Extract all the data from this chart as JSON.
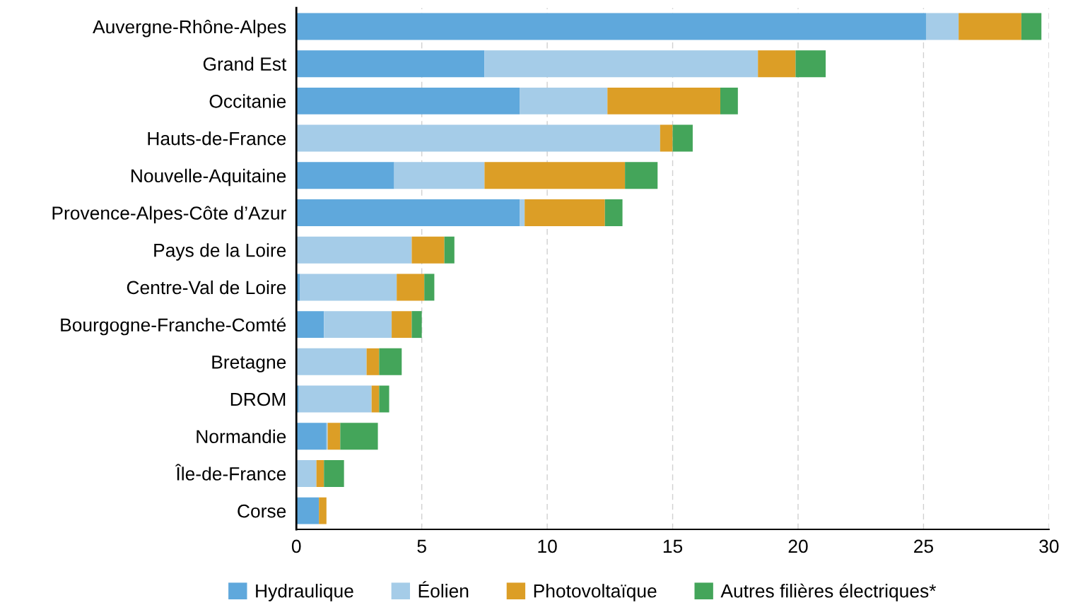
{
  "chart_data": {
    "type": "bar",
    "orientation": "horizontal",
    "stacked": true,
    "categories": [
      "Auvergne-Rhône-Alpes",
      "Grand Est",
      "Occitanie",
      "Hauts-de-France",
      "Nouvelle-Aquitaine",
      "Provence-Alpes-Côte d’Azur",
      "Pays de la Loire",
      "Centre-Val de Loire",
      "Bourgogne-Franche-Comté",
      "Bretagne",
      "DROM",
      "Normandie",
      "Île-de-France",
      "Corse"
    ],
    "series": [
      {
        "name": "Hydraulique",
        "color": "#5fa8dc",
        "values": [
          25.1,
          7.5,
          8.9,
          0,
          3.9,
          8.9,
          0,
          0.15,
          1.1,
          0,
          0.1,
          1.2,
          0,
          0.9
        ]
      },
      {
        "name": "Éolien",
        "color": "#a5cce8",
        "values": [
          1.3,
          10.9,
          3.5,
          14.5,
          3.6,
          0.2,
          4.6,
          3.85,
          2.7,
          2.8,
          2.9,
          0.05,
          0.8,
          0
        ]
      },
      {
        "name": "Photovoltaïque",
        "color": "#dc9e26",
        "values": [
          2.5,
          1.5,
          4.5,
          0.5,
          5.6,
          3.2,
          1.3,
          1.1,
          0.8,
          0.5,
          0.3,
          0.5,
          0.3,
          0.3
        ]
      },
      {
        "name": "Autres filières électriques*",
        "color": "#44a55a",
        "values": [
          0.8,
          1.2,
          0.7,
          0.8,
          1.3,
          0.7,
          0.4,
          0.4,
          0.4,
          0.9,
          0.4,
          1.5,
          0.8,
          0
        ]
      }
    ],
    "xlim": [
      0,
      30
    ],
    "xticks": [
      0,
      5,
      10,
      15,
      20,
      25,
      30
    ],
    "grid": "x",
    "legend": "bottom"
  }
}
